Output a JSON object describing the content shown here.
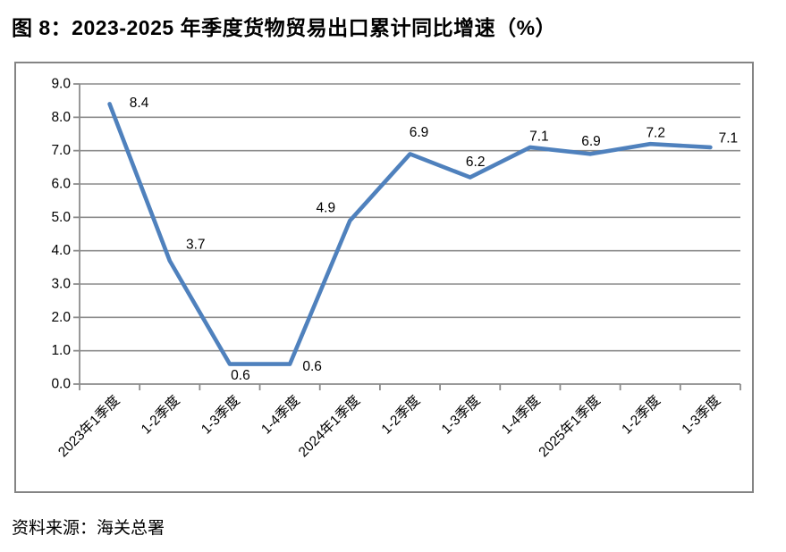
{
  "title": "图 8：2023-2025 年季度货物贸易出口累计同比增速（%）",
  "source_note": "资料来源：海关总署",
  "chart_data": {
    "type": "line",
    "categories": [
      "2023年1季度",
      "1-2季度",
      "1-3季度",
      "1-4季度",
      "2024年1季度",
      "1-2季度",
      "1-3季度",
      "1-4季度",
      "2025年1季度",
      "1-2季度",
      "1-3季度"
    ],
    "values": [
      8.4,
      3.7,
      0.6,
      0.6,
      4.9,
      6.9,
      6.2,
      7.1,
      6.9,
      7.2,
      7.1
    ],
    "data_labels": [
      "8.4",
      "3.7",
      "0.6",
      "0.6",
      "4.9",
      "6.9",
      "6.2",
      "7.1",
      "6.9",
      "7.2",
      "7.1"
    ],
    "title": "",
    "xlabel": "",
    "ylabel": "",
    "ylim": [
      0.0,
      9.0
    ],
    "ytick_step": 1.0,
    "ytick_labels": [
      "0.0",
      "1.0",
      "2.0",
      "3.0",
      "4.0",
      "5.0",
      "6.0",
      "7.0",
      "8.0",
      "9.0"
    ],
    "grid": true,
    "legend_position": "none",
    "colors": {
      "line": "#4f81bd",
      "grid": "#8c8c8c",
      "axis": "#8c8c8c",
      "text": "#000000",
      "frame_border": "#848484",
      "background": "#ffffff"
    }
  }
}
